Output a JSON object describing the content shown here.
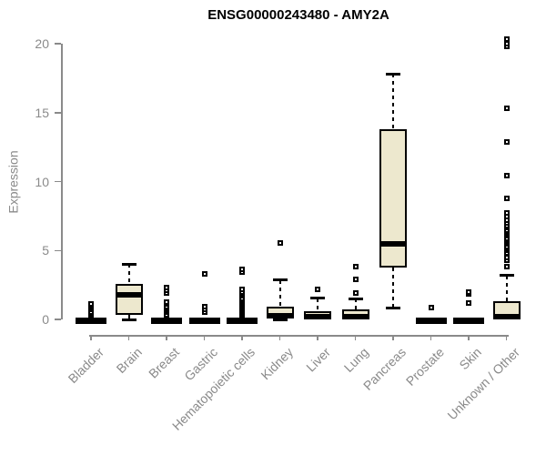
{
  "colors": {
    "box_fill": "#ede8ce",
    "box_stroke": "#000000",
    "axis": "#8a8a8a",
    "tick_label": "#8a8a8a",
    "title": "#000000",
    "background": "#ffffff"
  },
  "chart_data": {
    "type": "boxplot",
    "title": "ENSG00000243480 - AMY2A",
    "xlabel": "",
    "ylabel": "Expression",
    "ylim": [
      0,
      20
    ],
    "yticks": [
      0,
      5,
      10,
      15,
      20
    ],
    "grid": false,
    "legend": "none",
    "categories": [
      "Bladder",
      "Brain",
      "Breast",
      "Gastric",
      "Hematopoietic cells",
      "Kidney",
      "Liver",
      "Lung",
      "Pancreas",
      "Prostate",
      "Skin",
      "Unknown / Other"
    ],
    "boxes": [
      {
        "label": "Bladder",
        "q1": 0,
        "median": 0,
        "q3": 0,
        "whisker_low": 0,
        "whisker_high": 0,
        "outliers": [
          0.1,
          0.25,
          0.4,
          0.55,
          0.7,
          0.85,
          1.0,
          1.15
        ]
      },
      {
        "label": "Brain",
        "q1": 0.3,
        "median": 1.8,
        "q3": 2.55,
        "whisker_low": 0,
        "whisker_high": 4.0,
        "outliers": []
      },
      {
        "label": "Breast",
        "q1": 0,
        "median": 0,
        "q3": 0,
        "whisker_low": 0,
        "whisker_high": 0,
        "outliers": [
          0.2,
          0.35,
          0.5,
          0.65,
          0.8,
          0.95,
          1.1,
          1.25,
          1.9,
          2.1,
          2.3
        ]
      },
      {
        "label": "Gastric",
        "q1": 0,
        "median": 0,
        "q3": 0,
        "whisker_low": 0,
        "whisker_high": 0,
        "outliers": [
          0.5,
          0.7,
          0.95,
          3.3
        ]
      },
      {
        "label": "Hematopoietic cells",
        "q1": 0,
        "median": 0,
        "q3": 0,
        "whisker_low": 0,
        "whisker_high": 0,
        "outliers": [
          0.1,
          0.2,
          0.3,
          0.4,
          0.5,
          0.6,
          0.7,
          0.8,
          0.9,
          1.0,
          1.1,
          1.25,
          1.4,
          1.55,
          1.7,
          1.85,
          2.0,
          2.2,
          3.4,
          3.6
        ]
      },
      {
        "label": "Kidney",
        "q1": 0.05,
        "median": 0.25,
        "q3": 0.95,
        "whisker_low": 0,
        "whisker_high": 2.85,
        "outliers": [
          5.55
        ]
      },
      {
        "label": "Liver",
        "q1": 0,
        "median": 0.05,
        "q3": 0.6,
        "whisker_low": 0,
        "whisker_high": 1.55,
        "outliers": [
          2.2
        ]
      },
      {
        "label": "Lung",
        "q1": 0,
        "median": 0.05,
        "q3": 0.7,
        "whisker_low": 0,
        "whisker_high": 1.5,
        "outliers": [
          1.9,
          2.9,
          3.8
        ]
      },
      {
        "label": "Pancreas",
        "q1": 3.75,
        "median": 5.5,
        "q3": 13.8,
        "whisker_low": 0.85,
        "whisker_high": 17.8,
        "outliers": []
      },
      {
        "label": "Prostate",
        "q1": 0,
        "median": 0,
        "q3": 0,
        "whisker_low": 0,
        "whisker_high": 0,
        "outliers": [
          0.85
        ]
      },
      {
        "label": "Skin",
        "q1": 0,
        "median": 0,
        "q3": 0,
        "whisker_low": 0,
        "whisker_high": 0,
        "outliers": [
          1.2,
          1.85,
          2.0
        ]
      },
      {
        "label": "Unknown / Other",
        "q1": 0,
        "median": 0.1,
        "q3": 1.3,
        "whisker_low": 0,
        "whisker_high": 3.2,
        "outliers": [
          3.8,
          4.3,
          4.5,
          4.8,
          5.0,
          5.15,
          5.3,
          5.45,
          5.6,
          5.75,
          5.9,
          6.05,
          6.2,
          6.35,
          6.5,
          6.65,
          6.8,
          7.0,
          7.2,
          7.45,
          7.7,
          8.8,
          10.4,
          12.9,
          15.3,
          19.8,
          20.0,
          20.3
        ]
      }
    ]
  }
}
